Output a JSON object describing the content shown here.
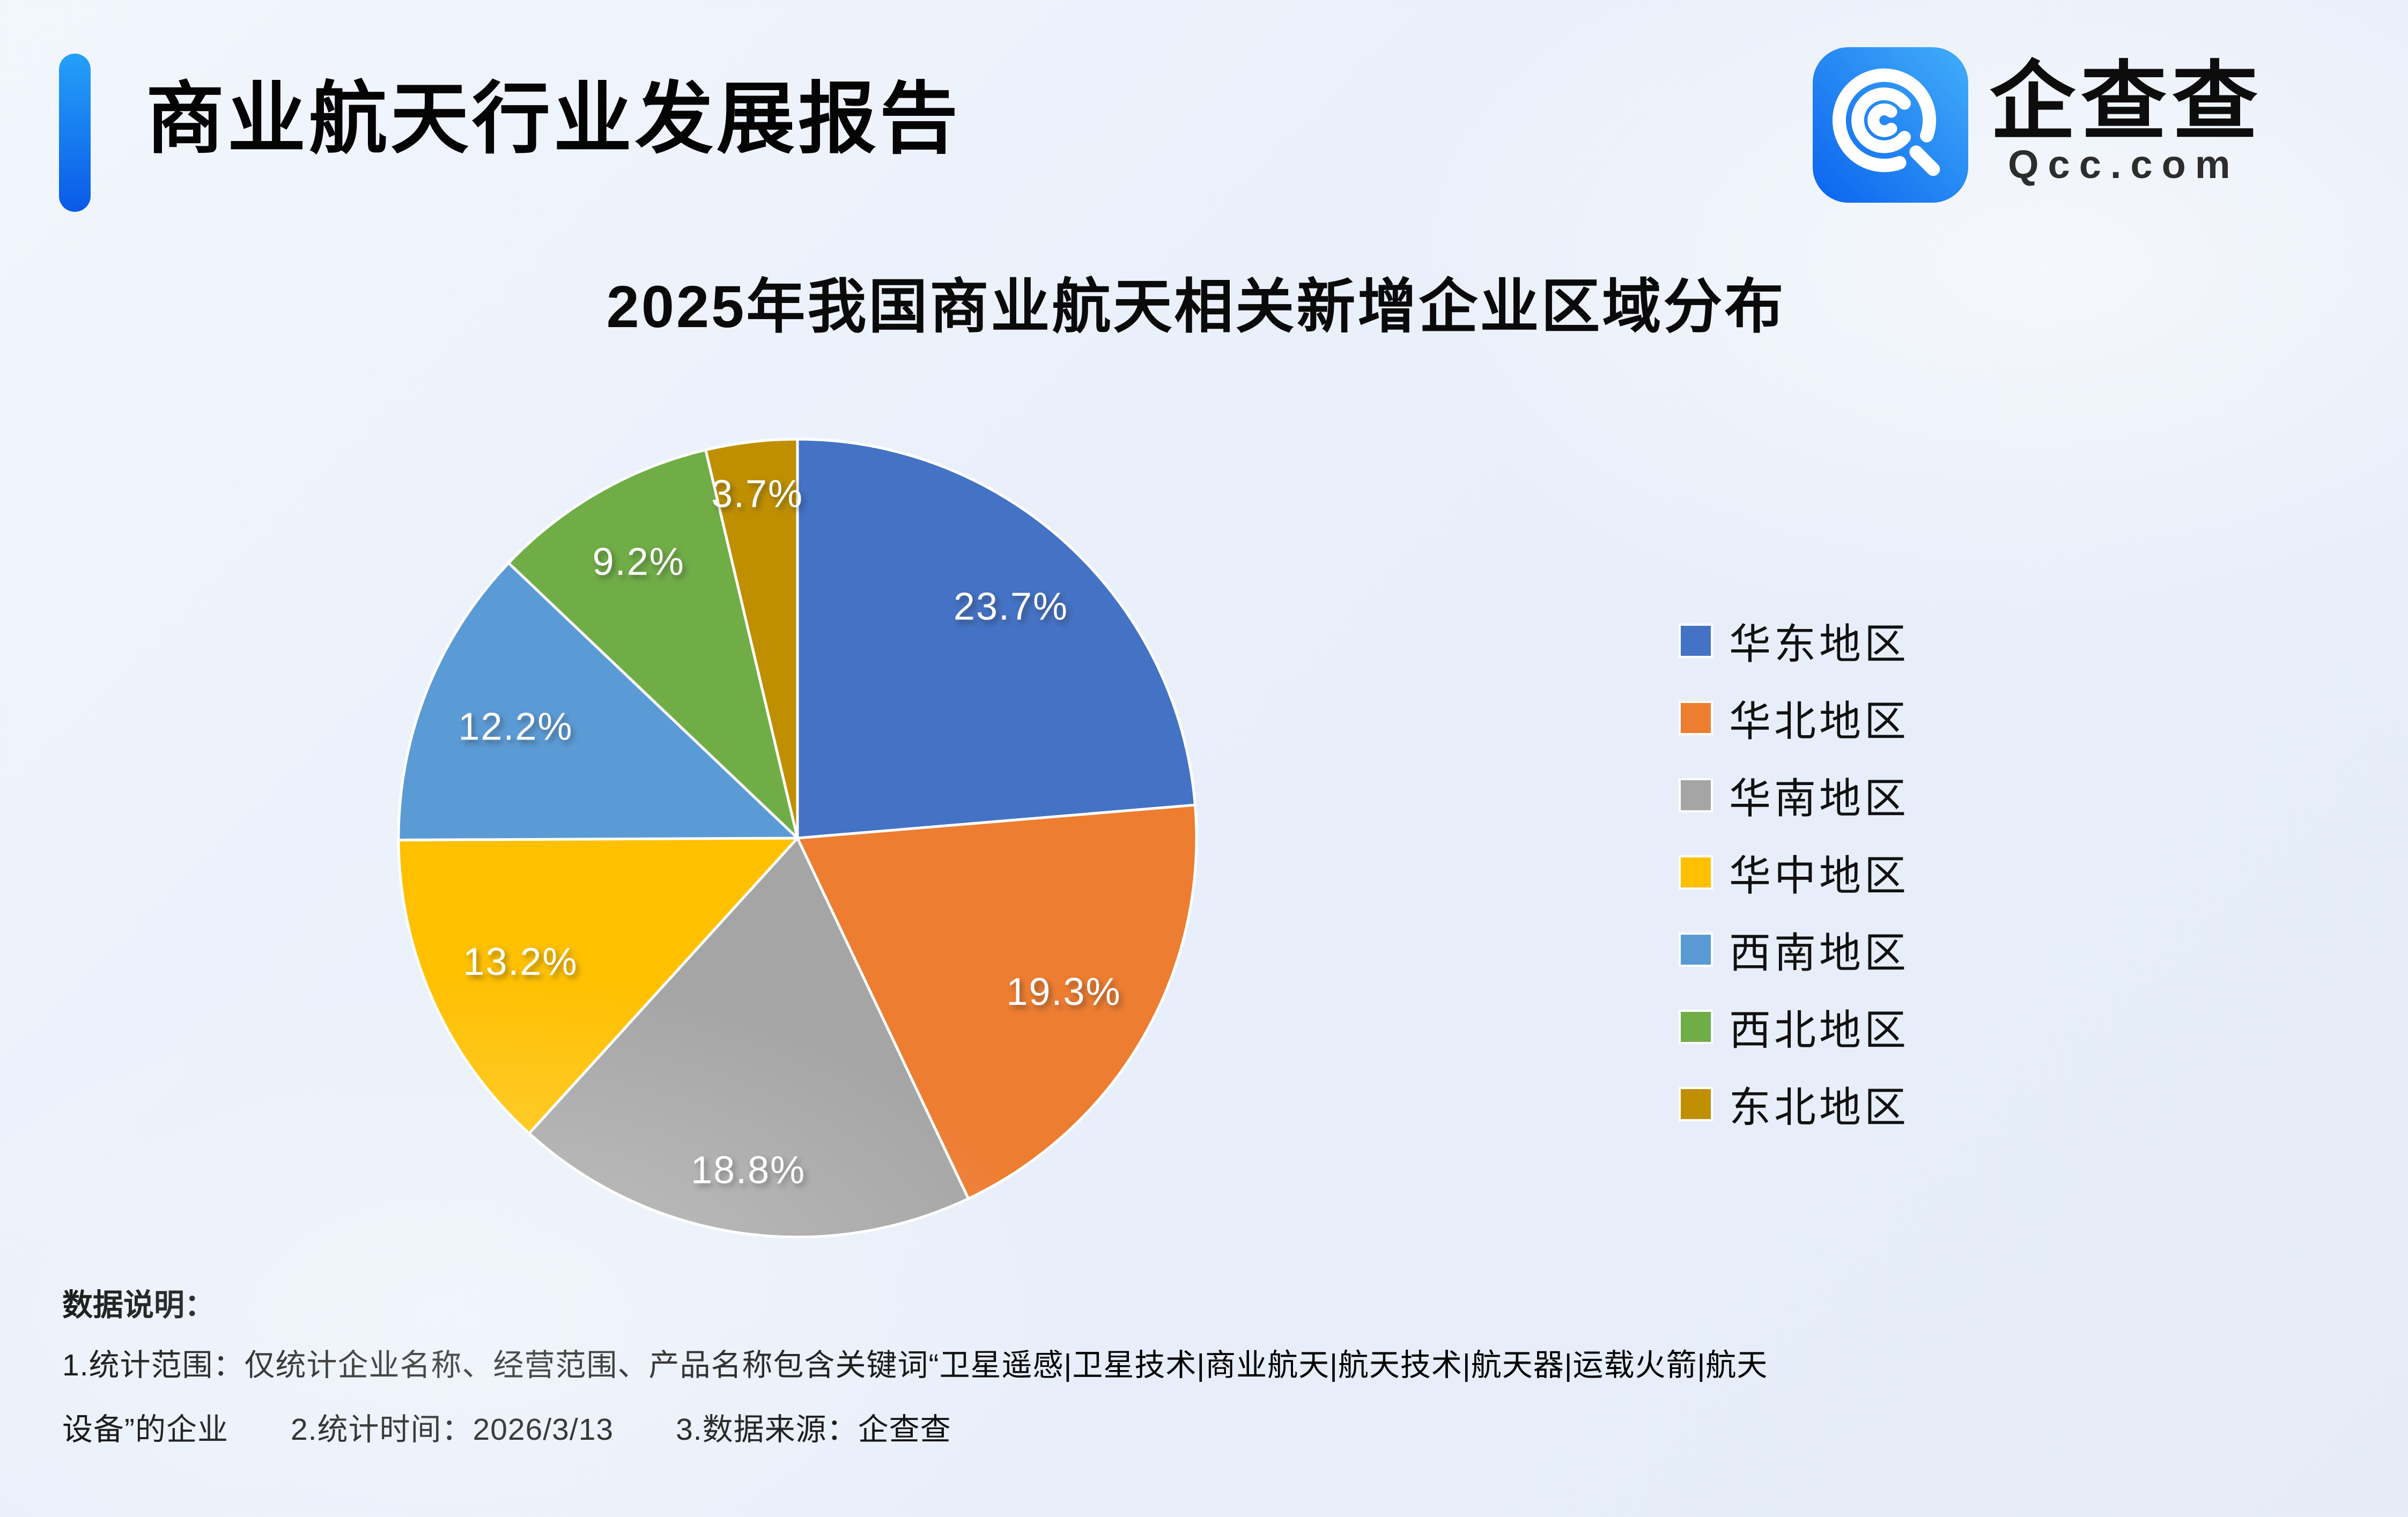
{
  "page": {
    "title": "商业航天行业发展报告"
  },
  "logo": {
    "brand_name": "企查查",
    "domain": "Qcc.com"
  },
  "theme": {
    "background": "#EAF0FA",
    "accent_bar_top": "#25A0F8",
    "accent_bar_bottom": "#0A5AE8",
    "logo_tile_left": "#0B64EE",
    "logo_tile_right": "#41ADF9"
  },
  "chart_data": {
    "type": "pie",
    "title": "2025年我国商业航天相关新增企业区域分布",
    "unit": "%",
    "direction": "clockwise",
    "start_angle_deg": 0,
    "legend_position": "right",
    "categories": [
      "华东地区",
      "华北地区",
      "华南地区",
      "华中地区",
      "西南地区",
      "西北地区",
      "东北地区"
    ],
    "values": [
      23.7,
      19.3,
      18.8,
      13.2,
      12.2,
      9.2,
      3.7
    ],
    "labels": [
      "23.7%",
      "19.3%",
      "18.8%",
      "13.2%",
      "12.2%",
      "9.2%",
      "3.7%"
    ],
    "colors": [
      "#4472C4",
      "#ED7D31",
      "#A5A5A5",
      "#FFC000",
      "#5B9BD5",
      "#70AD47",
      "#BF8F00"
    ]
  },
  "footer": {
    "label": "数据说明：",
    "line1": "1.统计范围：仅统计企业名称、经营范围、产品名称包含关键词“卫星遥感|卫星技术|商业航天|航天技术|航天器|运载火箭|航天",
    "line2": "设备”的企业　　2.统计时间：2026/3/13　　3.数据来源：企查查"
  }
}
